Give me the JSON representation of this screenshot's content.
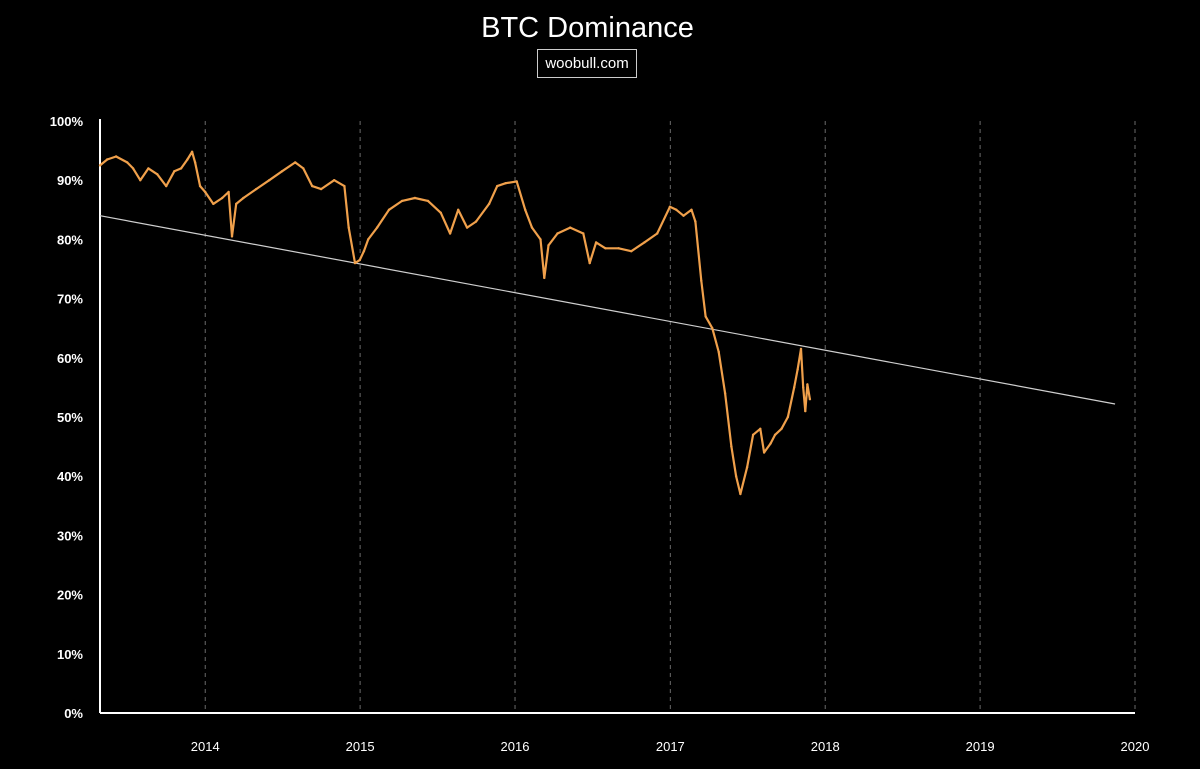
{
  "chart_data": {
    "type": "line",
    "title": "BTC Dominance",
    "source": "woobull.com",
    "xlabel": "",
    "ylabel": "",
    "xlim": [
      "2013-04-28",
      "2020-01-01"
    ],
    "ylim": [
      0,
      100
    ],
    "y_ticks": [
      "0%",
      "10%",
      "20%",
      "30%",
      "40%",
      "50%",
      "60%",
      "70%",
      "80%",
      "90%",
      "100%"
    ],
    "x_ticks": [
      "2014",
      "2015",
      "2016",
      "2017",
      "2018",
      "2019",
      "2020"
    ],
    "grid": "vertical dashed at year boundaries",
    "colors": {
      "series": "#f0a04b",
      "trend": "#cfcfcf",
      "background": "#000000",
      "axis": "#ffffff"
    },
    "series": [
      {
        "x": [
          "2013-04-28",
          "2013-05-15",
          "2013-06-05",
          "2013-07-01",
          "2013-07-15",
          "2013-08-01",
          "2013-08-20",
          "2013-09-10",
          "2013-10-01",
          "2013-10-20",
          "2013-11-05",
          "2013-11-20",
          "2013-12-01",
          "2013-12-08",
          "2013-12-20",
          "2014-01-01",
          "2014-01-20",
          "2014-02-10",
          "2014-02-25",
          "2014-03-05",
          "2014-03-15",
          "2014-04-01",
          "2014-05-01",
          "2014-06-01",
          "2014-07-01",
          "2014-08-01",
          "2014-08-20",
          "2014-09-10",
          "2014-10-01",
          "2014-11-01",
          "2014-11-25",
          "2014-12-05",
          "2014-12-20",
          "2014-12-31",
          "2015-01-10",
          "2015-01-20",
          "2015-02-10",
          "2015-03-10",
          "2015-04-10",
          "2015-05-10",
          "2015-06-10",
          "2015-07-10",
          "2015-08-01",
          "2015-08-20",
          "2015-09-10",
          "2015-10-01",
          "2015-11-01",
          "2015-11-20",
          "2015-12-10",
          "2016-01-05",
          "2016-01-25",
          "2016-02-10",
          "2016-03-01",
          "2016-03-10",
          "2016-03-20",
          "2016-04-10",
          "2016-05-10",
          "2016-06-10",
          "2016-06-25",
          "2016-07-10",
          "2016-08-01",
          "2016-09-01",
          "2016-10-01",
          "2016-11-01",
          "2016-12-01",
          "2016-12-31",
          "2017-01-15",
          "2017-02-01",
          "2017-02-20",
          "2017-03-01",
          "2017-03-15",
          "2017-03-25",
          "2017-04-10",
          "2017-04-25",
          "2017-05-10",
          "2017-05-25",
          "2017-06-05",
          "2017-06-15",
          "2017-07-01",
          "2017-07-15",
          "2017-08-01",
          "2017-08-10",
          "2017-08-25",
          "2017-09-05",
          "2017-09-20",
          "2017-10-05",
          "2017-10-20",
          "2017-10-28",
          "2017-11-05",
          "2017-11-10",
          "2017-11-15",
          "2017-11-20",
          "2017-11-26"
        ],
        "y": [
          92.5,
          93.5,
          94.0,
          93.0,
          92.0,
          90.0,
          92.0,
          91.0,
          89.0,
          91.5,
          92.0,
          93.5,
          94.8,
          93.0,
          89.0,
          88.0,
          86.0,
          87.0,
          88.0,
          80.5,
          86.0,
          87.0,
          88.5,
          90.0,
          91.5,
          93.0,
          92.0,
          89.0,
          88.5,
          90.0,
          89.0,
          82.0,
          76.0,
          76.5,
          78.0,
          80.0,
          82.0,
          85.0,
          86.5,
          87.0,
          86.5,
          84.5,
          81.0,
          85.0,
          82.0,
          83.0,
          86.0,
          89.0,
          89.5,
          89.8,
          85.0,
          82.0,
          80.0,
          73.5,
          79.0,
          81.0,
          82.0,
          81.0,
          76.0,
          79.5,
          78.5,
          78.5,
          78.0,
          79.5,
          81.0,
          85.5,
          85.0,
          84.0,
          85.0,
          83.0,
          73.0,
          67.0,
          65.0,
          61.0,
          54.0,
          45.0,
          40.0,
          37.0,
          41.5,
          47.0,
          48.0,
          44.0,
          45.5,
          47.0,
          48.0,
          50.0,
          55.0,
          58.0,
          61.5,
          55.0,
          51.0,
          55.5,
          53.0
        ]
      }
    ],
    "annotations": [
      {
        "type": "trend-line",
        "from": [
          "2013-04-28",
          84.0
        ],
        "to": [
          "2019-11-15",
          52.2
        ]
      }
    ]
  }
}
